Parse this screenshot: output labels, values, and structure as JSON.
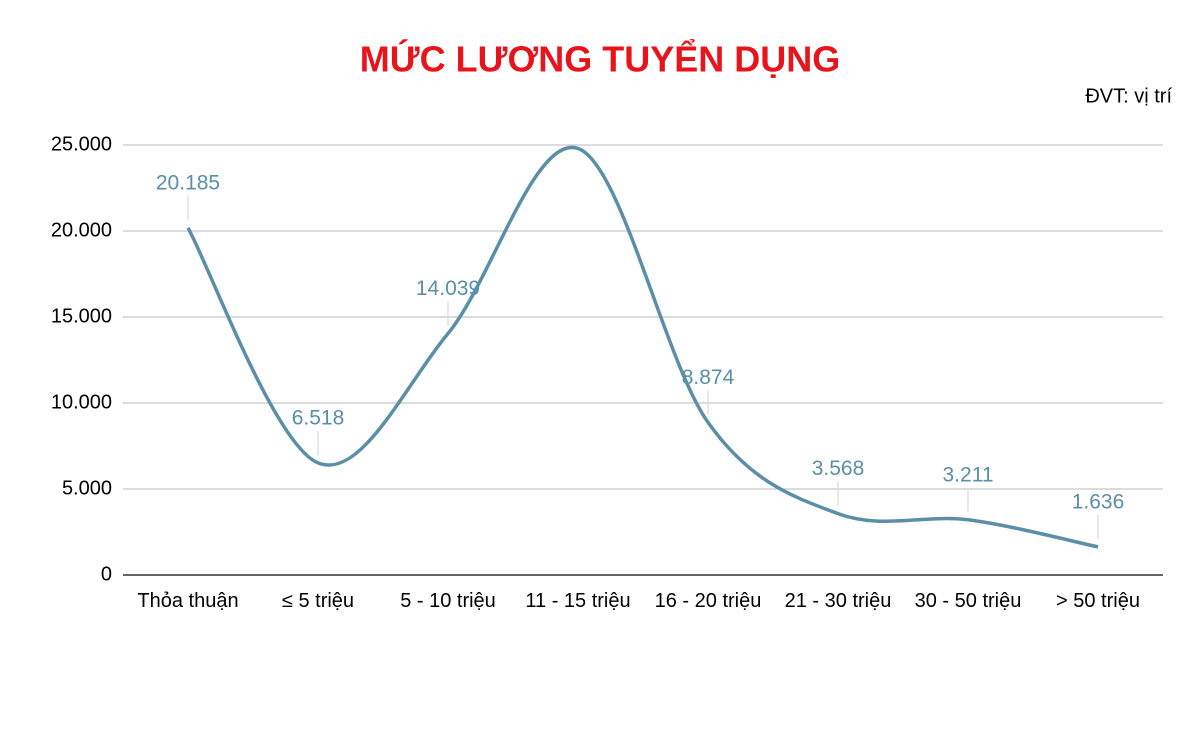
{
  "chart_data": {
    "type": "line",
    "title": "MỨC LƯƠNG TUYỂN DỤNG",
    "subtitle": "ĐVT: vị trí",
    "categories": [
      "Thỏa thuận",
      "≤ 5 triệu",
      "5 - 10 triệu",
      "11 - 15 triệu",
      "16 - 20 triệu",
      "21 - 30 triệu",
      "30 - 50 triệu",
      "> 50 triệu"
    ],
    "series": [
      {
        "color": "#5b8fa8",
        "values": [
          20185,
          6518,
          14039,
          24800,
          8874,
          3568,
          3211,
          1636
        ],
        "value_labels": [
          "20.185",
          "6.518",
          "14.039",
          null,
          "8.874",
          "3.568",
          "3.211",
          "1.636"
        ]
      }
    ],
    "ylim": [
      0,
      25000
    ],
    "yticks": [
      0,
      {
        "value": 5000,
        "label": "5.000"
      },
      {
        "value": 10000,
        "label": "10.000"
      },
      {
        "value": 15000,
        "label": "15.000"
      },
      {
        "value": 20000,
        "label": "20.000"
      },
      {
        "value": 25000,
        "label": "25.000"
      }
    ],
    "grid": true,
    "smooth": true
  }
}
